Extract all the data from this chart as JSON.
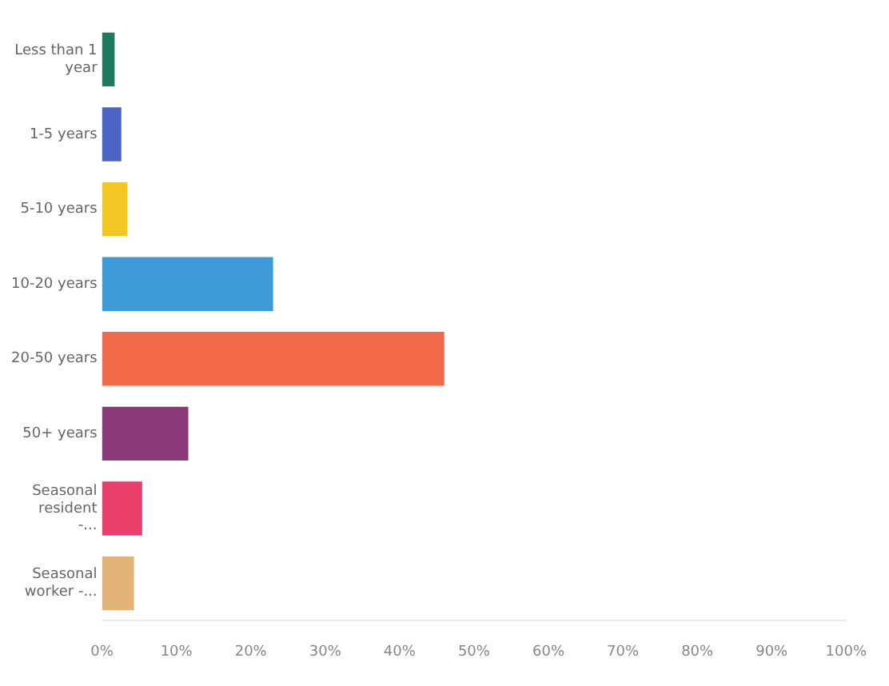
{
  "chart_data": {
    "type": "bar",
    "orientation": "horizontal",
    "categories": [
      "Less than 1 year",
      "1-5 years",
      "5-10 years",
      "10-20 years",
      "20-50 years",
      "50+ years",
      "Seasonal resident -...",
      "Seasonal worker -..."
    ],
    "values": [
      1.7,
      2.6,
      3.4,
      23,
      46,
      11.6,
      5.4,
      4.3
    ],
    "colors": [
      "#1e7a5e",
      "#4a63c4",
      "#f2c624",
      "#3d9ad6",
      "#f26a4a",
      "#8a3a78",
      "#e83e6a",
      "#e2b478"
    ],
    "xlim": [
      0,
      100
    ],
    "xticks": [
      {
        "value": 0,
        "label": "0%"
      },
      {
        "value": 10,
        "label": "10%"
      },
      {
        "value": 20,
        "label": "20%"
      },
      {
        "value": 30,
        "label": "30%"
      },
      {
        "value": 40,
        "label": "40%"
      },
      {
        "value": 50,
        "label": "50%"
      },
      {
        "value": 60,
        "label": "60%"
      },
      {
        "value": 70,
        "label": "70%"
      },
      {
        "value": 80,
        "label": "80%"
      },
      {
        "value": 90,
        "label": "90%"
      },
      {
        "value": 100,
        "label": "100%"
      }
    ],
    "grid": false,
    "legend": false
  }
}
